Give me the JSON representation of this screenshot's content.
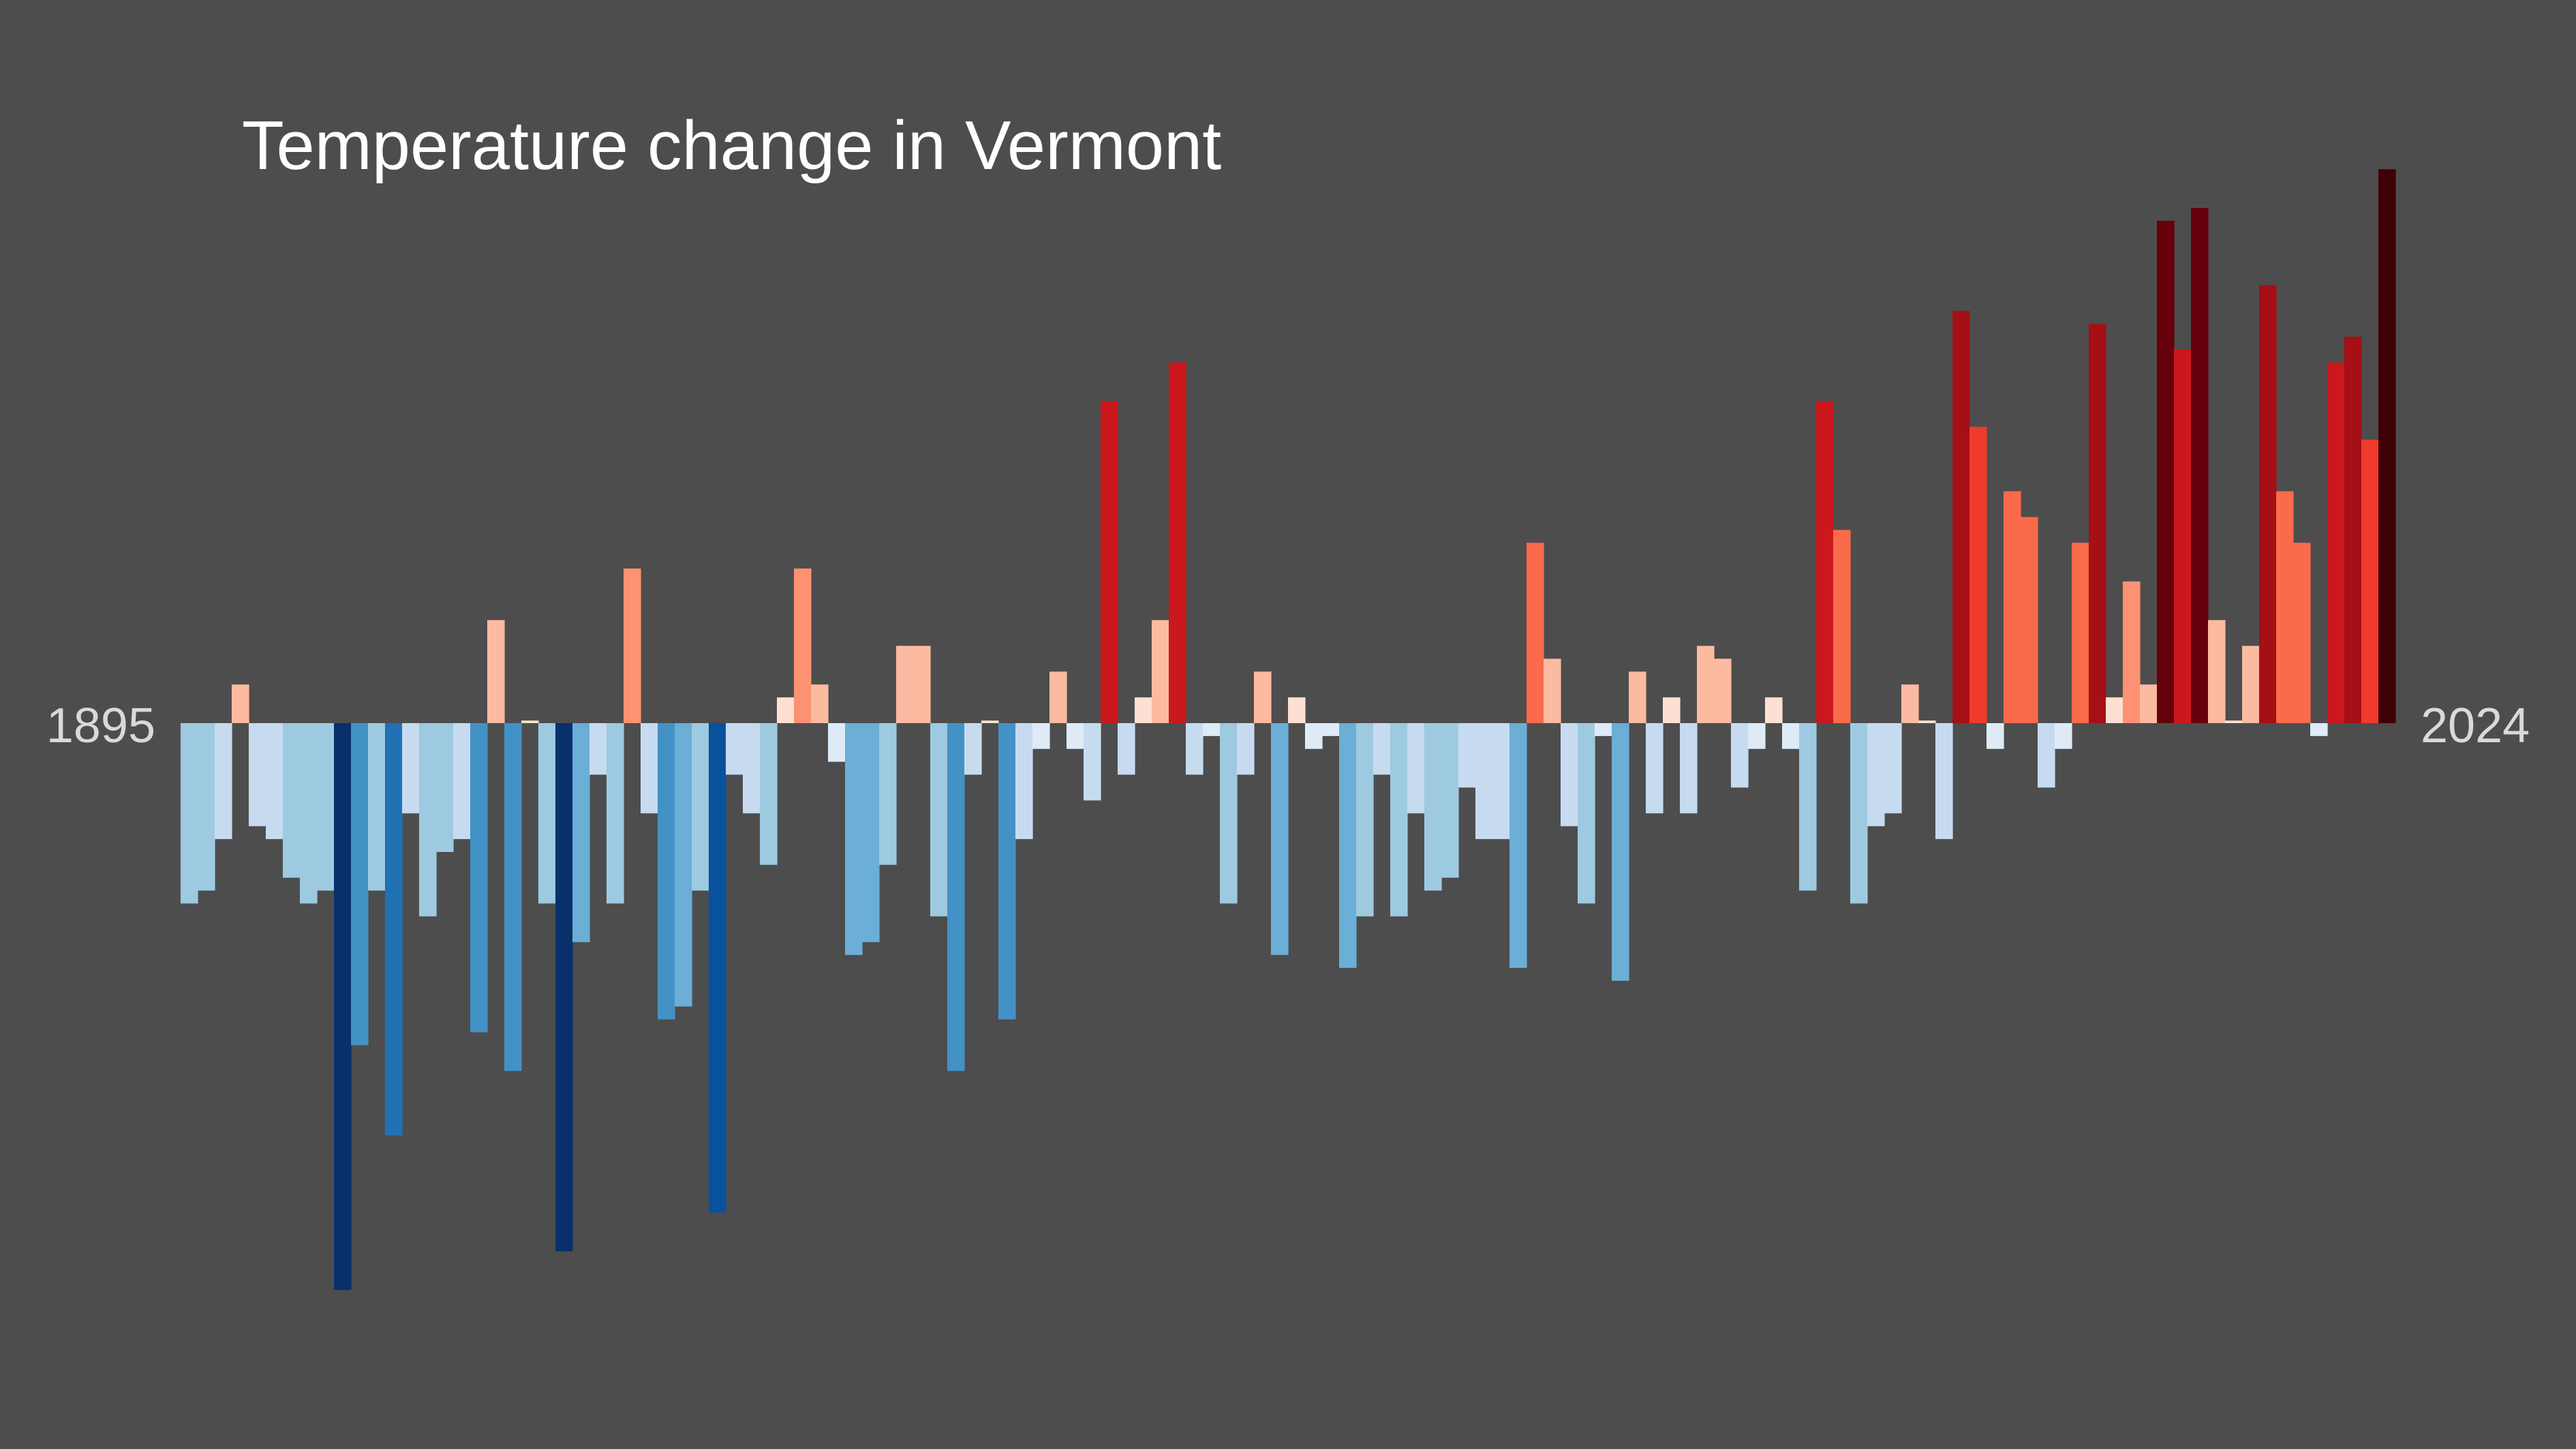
{
  "chart_data": {
    "type": "bar",
    "title": "Temperature change in Vermont",
    "x_start_label": "1895",
    "x_end_label": "2024",
    "x": [
      1895,
      1896,
      1897,
      1898,
      1899,
      1900,
      1901,
      1902,
      1903,
      1904,
      1905,
      1906,
      1907,
      1908,
      1909,
      1910,
      1911,
      1912,
      1913,
      1914,
      1915,
      1916,
      1917,
      1918,
      1919,
      1920,
      1921,
      1922,
      1923,
      1924,
      1925,
      1926,
      1927,
      1928,
      1929,
      1930,
      1931,
      1932,
      1933,
      1934,
      1935,
      1936,
      1937,
      1938,
      1939,
      1940,
      1941,
      1942,
      1943,
      1944,
      1945,
      1946,
      1947,
      1948,
      1949,
      1950,
      1951,
      1952,
      1953,
      1954,
      1955,
      1956,
      1957,
      1958,
      1959,
      1960,
      1961,
      1962,
      1963,
      1964,
      1965,
      1966,
      1967,
      1968,
      1969,
      1970,
      1971,
      1972,
      1973,
      1974,
      1975,
      1976,
      1977,
      1978,
      1979,
      1980,
      1981,
      1982,
      1983,
      1984,
      1985,
      1986,
      1987,
      1988,
      1989,
      1990,
      1991,
      1992,
      1993,
      1994,
      1995,
      1996,
      1997,
      1998,
      1999,
      2000,
      2001,
      2002,
      2003,
      2004,
      2005,
      2006,
      2007,
      2008,
      2009,
      2010,
      2011,
      2012,
      2013,
      2014,
      2015,
      2016,
      2017,
      2018,
      2019,
      2020,
      2021,
      2022,
      2023,
      2024
    ],
    "values": [
      -1.4,
      -1.3,
      -0.9,
      0.3,
      -0.8,
      -0.9,
      -1.2,
      -1.4,
      -1.3,
      -4.4,
      -2.5,
      -1.3,
      -3.2,
      -0.7,
      -1.5,
      -1.0,
      -0.9,
      -2.4,
      0.8,
      -2.7,
      0.02,
      -1.4,
      -4.1,
      -1.7,
      -0.4,
      -1.4,
      1.2,
      -0.7,
      -2.3,
      -2.2,
      -1.3,
      -3.8,
      -0.4,
      -0.7,
      -1.1,
      0.2,
      1.2,
      0.3,
      -0.3,
      -1.8,
      -1.7,
      -1.1,
      0.6,
      0.6,
      -1.5,
      -2.7,
      -0.4,
      0.02,
      -2.3,
      -0.9,
      -0.2,
      0.4,
      -0.2,
      -0.6,
      2.5,
      -0.4,
      0.2,
      0.8,
      2.8,
      -0.4,
      -0.1,
      -1.4,
      -0.4,
      0.4,
      -1.8,
      0.2,
      -0.2,
      -0.1,
      -1.9,
      -1.5,
      -0.4,
      -1.5,
      -0.7,
      -1.3,
      -1.2,
      -0.5,
      -0.9,
      -0.9,
      -1.9,
      1.4,
      0.5,
      -0.8,
      -1.4,
      -0.1,
      -2.0,
      0.4,
      -0.7,
      0.2,
      -0.7,
      0.6,
      0.5,
      -0.5,
      -0.2,
      0.2,
      -0.2,
      -1.3,
      2.5,
      1.5,
      -1.4,
      -0.8,
      -0.7,
      0.3,
      0.02,
      -0.9,
      3.2,
      2.3,
      -0.2,
      1.8,
      1.6,
      -0.5,
      -0.2,
      1.4,
      3.1,
      0.2,
      1.1,
      0.3,
      3.9,
      2.9,
      4.0,
      0.8,
      0.02,
      0.6,
      3.4,
      1.8,
      1.4,
      -0.1,
      2.8,
      3.0,
      2.2,
      4.3
    ],
    "ylim": [
      -4.6,
      4.6
    ],
    "grid": false,
    "legend": "none",
    "color_scale": {
      "domain": [
        -4.4,
        4.3
      ],
      "stops_cold_to_hot": [
        "#08306b",
        "#08519c",
        "#2171b5",
        "#4292c6",
        "#6baed6",
        "#9ecae1",
        "#c6dbef",
        "#deebf7",
        "#fee0d2",
        "#fcbba1",
        "#fc9272",
        "#fb6a4a",
        "#ef3b2c",
        "#cb181d",
        "#a50f15",
        "#67000d",
        "#3f0005"
      ]
    },
    "colors": {
      "background": "#4d4d4d",
      "title": "#ffffff",
      "year_labels": "#d9d9d9"
    }
  }
}
